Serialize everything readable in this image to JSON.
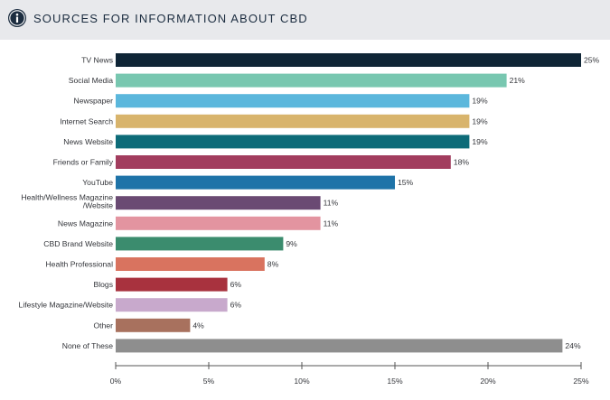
{
  "header": {
    "title": "SOURCES FOR INFORMATION ABOUT CBD",
    "icon": "info-icon"
  },
  "chart_data": {
    "type": "bar",
    "orientation": "horizontal",
    "title": "SOURCES FOR INFORMATION ABOUT CBD",
    "xlabel": "",
    "ylabel": "",
    "xlim": [
      0,
      25
    ],
    "x_ticks": [
      0,
      5,
      10,
      15,
      20,
      25
    ],
    "x_tick_labels": [
      "0%",
      "5%",
      "10%",
      "15%",
      "20%",
      "25%"
    ],
    "grid": false,
    "categories": [
      "TV News",
      "Social Media",
      "Newspaper",
      "Internet Search",
      "News Website",
      "Friends or Family",
      "YouTube",
      "Health/Wellness Magazine /Website",
      "News Magazine",
      "CBD Brand Website",
      "Health Professional",
      "Blogs",
      "Lifestyle Magazine/Website",
      "Other",
      "None of These"
    ],
    "values": [
      25,
      21,
      19,
      19,
      19,
      18,
      15,
      11,
      11,
      9,
      8,
      6,
      6,
      4,
      24
    ],
    "value_labels": [
      "25%",
      "21%",
      "19%",
      "19%",
      "19%",
      "18%",
      "15%",
      "11%",
      "11%",
      "9%",
      "8%",
      "6%",
      "6%",
      "4%",
      "24%"
    ],
    "colors": [
      "#0f2536",
      "#78c7b0",
      "#5bb7dc",
      "#d8b46c",
      "#0d6b78",
      "#a23d5e",
      "#1e73a8",
      "#6a4a73",
      "#e394a0",
      "#3b8c6e",
      "#d9735f",
      "#a8323e",
      "#c8a9cc",
      "#a8715e",
      "#8e8e8e"
    ]
  }
}
